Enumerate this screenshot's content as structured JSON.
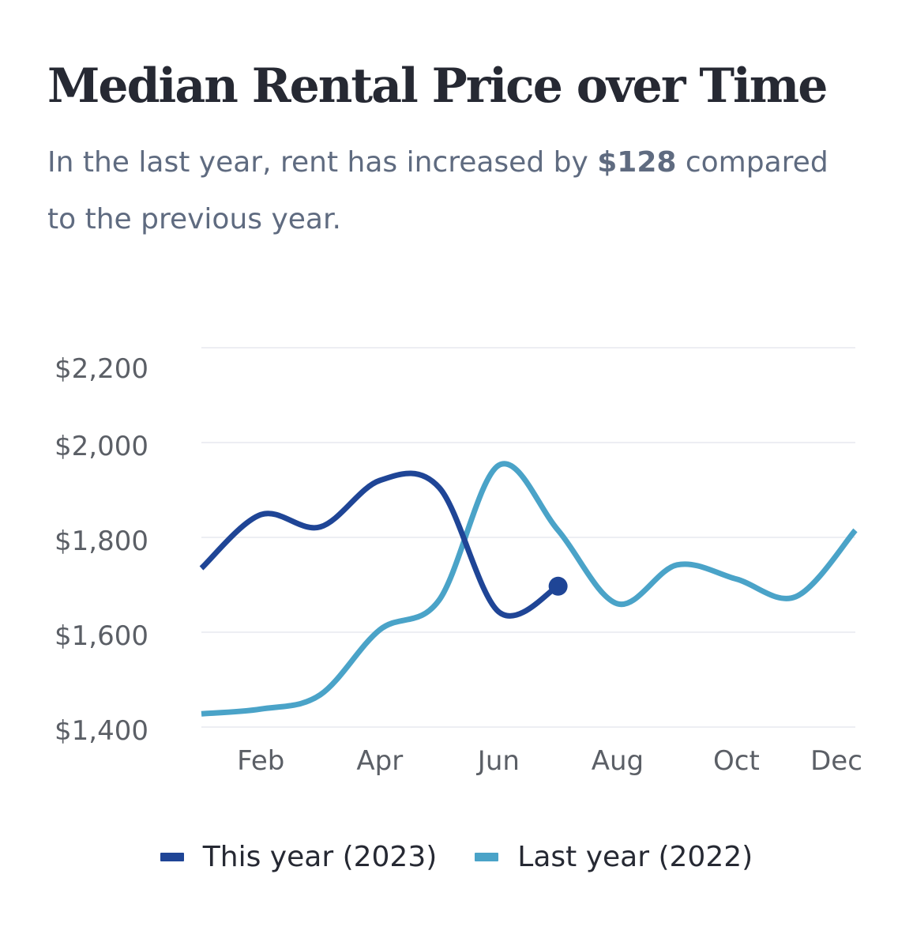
{
  "header": {
    "title": "Median Rental Price over Time",
    "subtitle_prefix": "In the last year, rent has increased by ",
    "subtitle_highlight": "$128",
    "subtitle_suffix": " compared to the previous year."
  },
  "chart_data": {
    "type": "line",
    "title": "Median Rental Price over Time",
    "xlabel": "",
    "ylabel": "",
    "x_ticks": [
      "Feb",
      "Apr",
      "Jun",
      "Aug",
      "Oct",
      "Dec"
    ],
    "y_ticks": [
      "$1,400",
      "$1,600",
      "$1,800",
      "$2,000",
      "$2,200"
    ],
    "ylim": [
      1400,
      2200
    ],
    "xlim": [
      1,
      12
    ],
    "grid": true,
    "legend_position": "bottom",
    "series": [
      {
        "name": "This year (2023)",
        "color": "#1f4596",
        "end_marker": true,
        "x": [
          1,
          2,
          3,
          4,
          5,
          6,
          7
        ],
        "y": [
          1735,
          1848,
          1822,
          1920,
          1905,
          1643,
          1697
        ]
      },
      {
        "name": "Last year (2022)",
        "color": "#4aa3c8",
        "end_marker": false,
        "x": [
          1,
          2,
          3,
          4,
          5,
          6,
          7,
          8,
          9,
          10,
          11,
          12
        ],
        "y": [
          1428,
          1438,
          1468,
          1605,
          1668,
          1952,
          1815,
          1660,
          1742,
          1712,
          1675,
          1815
        ]
      }
    ]
  }
}
